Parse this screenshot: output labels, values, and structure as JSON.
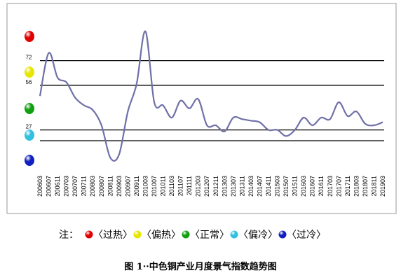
{
  "chart_data": {
    "type": "line",
    "title": "图 1··中色铜产业月度景气指数趋势图",
    "note": "注：",
    "legend": [
      {
        "label": "〈过热〉",
        "color": "#e00000"
      },
      {
        "label": "〈偏热〉",
        "color": "#e6e600"
      },
      {
        "label": "〈正常〉",
        "color": "#10a010"
      },
      {
        "label": "〈偏冷〉",
        "color": "#30c0e0"
      },
      {
        "label": "〈过冷〉",
        "color": "#1020c0"
      }
    ],
    "categories": [
      "200603",
      "200607",
      "200611",
      "200703",
      "200707",
      "200711",
      "200803",
      "200807",
      "200811",
      "200903",
      "200907",
      "200911",
      "201003",
      "201007",
      "201011",
      "201103",
      "201107",
      "201111",
      "201203",
      "201207",
      "201211",
      "201303",
      "201307",
      "201311",
      "201403",
      "201407",
      "201411",
      "201503",
      "201507",
      "201511",
      "201603",
      "201607",
      "201611",
      "201703",
      "201707",
      "201711",
      "201803",
      "201807",
      "201811",
      "201903"
    ],
    "series": [
      {
        "name": "景气指数",
        "color": "#7070a8",
        "values": [
          49,
          77,
          61,
          58,
          48,
          43,
          40,
          30,
          9,
          11,
          39,
          57,
          91,
          45,
          43,
          35,
          46,
          41,
          47,
          30,
          30,
          26,
          35,
          34,
          33,
          32,
          27,
          27,
          23,
          27,
          35,
          30,
          35,
          34,
          45,
          36,
          39,
          31,
          30,
          32
        ]
      }
    ],
    "ylim": [
      0,
      100
    ],
    "yticks": [
      20,
      27,
      56,
      72
    ],
    "grid": true
  }
}
